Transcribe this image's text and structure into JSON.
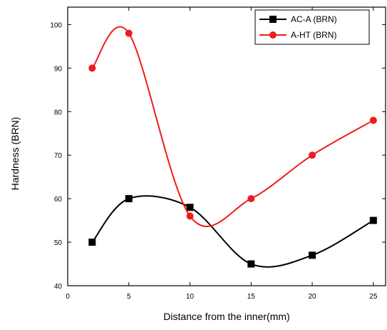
{
  "chart_data": {
    "type": "line",
    "title": "",
    "xlabel": "Distance from the inner(mm)",
    "ylabel": "Hardness (BRN)",
    "xlim": [
      0,
      26
    ],
    "ylim": [
      40,
      104
    ],
    "x_ticks": [
      0,
      5,
      10,
      15,
      20,
      25
    ],
    "y_ticks": [
      40,
      50,
      60,
      70,
      80,
      90,
      100
    ],
    "grid": false,
    "legend_position": "top-right",
    "smooth": true,
    "series": [
      {
        "name": "AC-A (BRN)",
        "color": "#000000",
        "marker": "square",
        "x": [
          2,
          5,
          10,
          15,
          20,
          25
        ],
        "y": [
          50,
          60,
          58,
          45,
          47,
          55
        ]
      },
      {
        "name": "A-HT (BRN)",
        "color": "#ee1c1c",
        "marker": "circle",
        "x": [
          2,
          5,
          10,
          15,
          20,
          25
        ],
        "y": [
          90,
          98,
          56,
          60,
          70,
          78
        ]
      }
    ]
  }
}
